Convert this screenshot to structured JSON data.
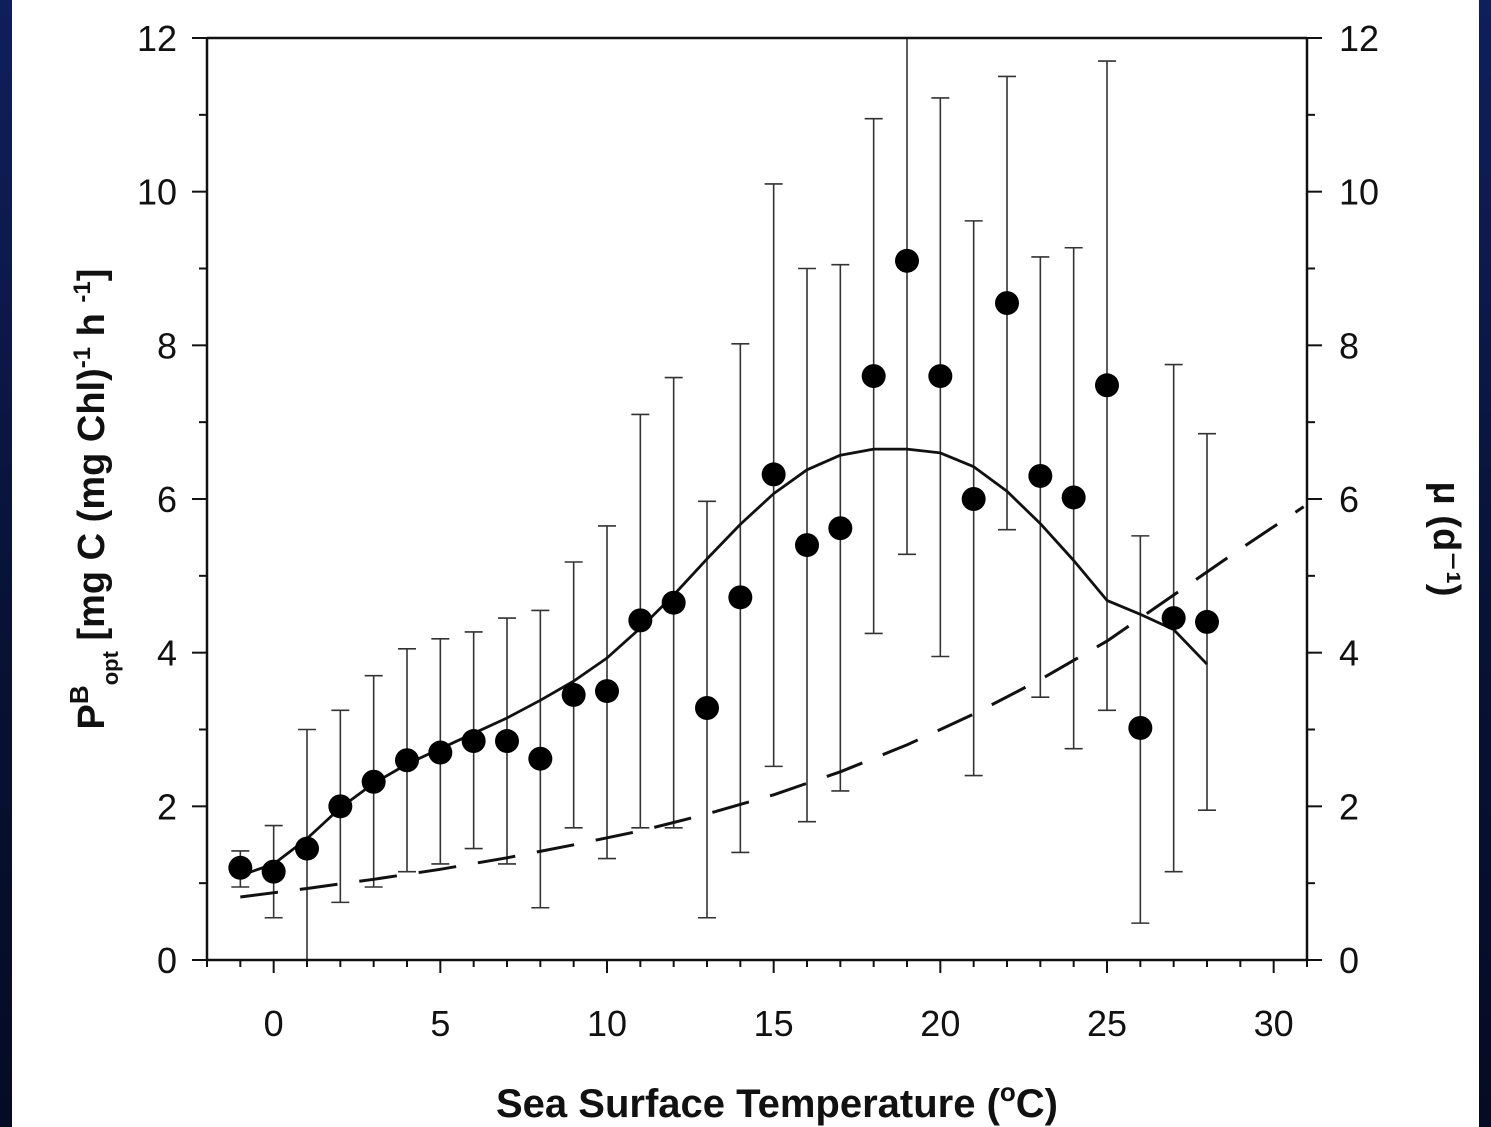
{
  "chart_data": {
    "type": "scatter",
    "xlabel": "Sea Surface Temperature",
    "xlabel_unit": "(°C)",
    "ylabel": {
      "P": "P",
      "superscript": "B",
      "subscript": "opt",
      "rest": "[mg C (mg Chl)",
      "exp1": "-1",
      "mid": " h ",
      "exp2": "-1",
      "close": "]"
    },
    "y2label": "μ (d⁻¹)",
    "xlim": [
      -2,
      31
    ],
    "ylim": [
      0,
      12
    ],
    "y2lim": [
      0,
      12
    ],
    "x_ticks": [
      0,
      5,
      10,
      15,
      20,
      25,
      30
    ],
    "y_ticks": [
      0,
      2,
      4,
      6,
      8,
      10,
      12
    ],
    "y2_ticks": [
      0,
      2,
      4,
      6,
      8,
      10,
      12
    ],
    "points": {
      "x": [
        -1,
        0,
        1,
        2,
        3,
        4,
        5,
        6,
        7,
        8,
        9,
        10,
        11,
        12,
        13,
        14,
        15,
        16,
        17,
        18,
        19,
        20,
        21,
        22,
        23,
        24,
        25,
        26,
        27,
        28
      ],
      "y": [
        1.2,
        1.15,
        1.45,
        2.0,
        2.32,
        2.6,
        2.7,
        2.85,
        2.85,
        2.62,
        3.45,
        3.5,
        4.42,
        4.65,
        3.28,
        4.72,
        6.32,
        5.4,
        5.62,
        7.6,
        9.1,
        7.6,
        6.0,
        8.55,
        6.3,
        6.02,
        7.48,
        3.02,
        4.45,
        4.4
      ],
      "ylow": [
        0.95,
        0.55,
        0.0,
        0.75,
        0.95,
        1.15,
        1.25,
        1.45,
        1.25,
        0.68,
        1.72,
        1.32,
        1.72,
        1.72,
        0.55,
        1.4,
        2.52,
        1.8,
        2.2,
        4.25,
        5.28,
        3.95,
        2.4,
        5.6,
        3.42,
        2.75,
        3.25,
        0.48,
        1.15,
        1.95
      ],
      "yhigh": [
        1.42,
        1.75,
        3.0,
        3.25,
        3.7,
        4.05,
        4.18,
        4.27,
        4.45,
        4.55,
        5.18,
        5.65,
        7.1,
        7.58,
        5.97,
        8.02,
        10.1,
        9.0,
        9.05,
        10.95,
        12.0,
        11.22,
        9.62,
        11.5,
        9.15,
        9.27,
        11.7,
        5.52,
        7.75,
        6.85
      ]
    },
    "series": [
      {
        "style": "solid",
        "x": [
          -1,
          0,
          1,
          2,
          3,
          4,
          5,
          6,
          7,
          8,
          9,
          10,
          11,
          12,
          13,
          14,
          15,
          16,
          17,
          18,
          19,
          20,
          21,
          22,
          23,
          24,
          25,
          26,
          27,
          28
        ],
        "y": [
          1.1,
          1.25,
          1.58,
          1.98,
          2.3,
          2.55,
          2.75,
          2.95,
          3.15,
          3.38,
          3.63,
          3.93,
          4.32,
          4.75,
          5.22,
          5.67,
          6.07,
          6.38,
          6.57,
          6.65,
          6.65,
          6.6,
          6.42,
          6.1,
          5.68,
          5.2,
          4.68,
          4.5,
          4.3,
          3.85
        ]
      },
      {
        "style": "dashed",
        "x": [
          -1,
          1,
          3,
          5,
          7,
          9,
          11,
          13,
          15,
          17,
          19,
          21,
          23,
          25,
          27,
          29,
          30.9
        ],
        "y": [
          0.82,
          0.93,
          1.05,
          1.18,
          1.33,
          1.5,
          1.68,
          1.9,
          2.15,
          2.45,
          2.8,
          3.2,
          3.65,
          4.15,
          4.75,
          5.35,
          5.9
        ]
      }
    ],
    "grid": false,
    "legend": "none"
  }
}
